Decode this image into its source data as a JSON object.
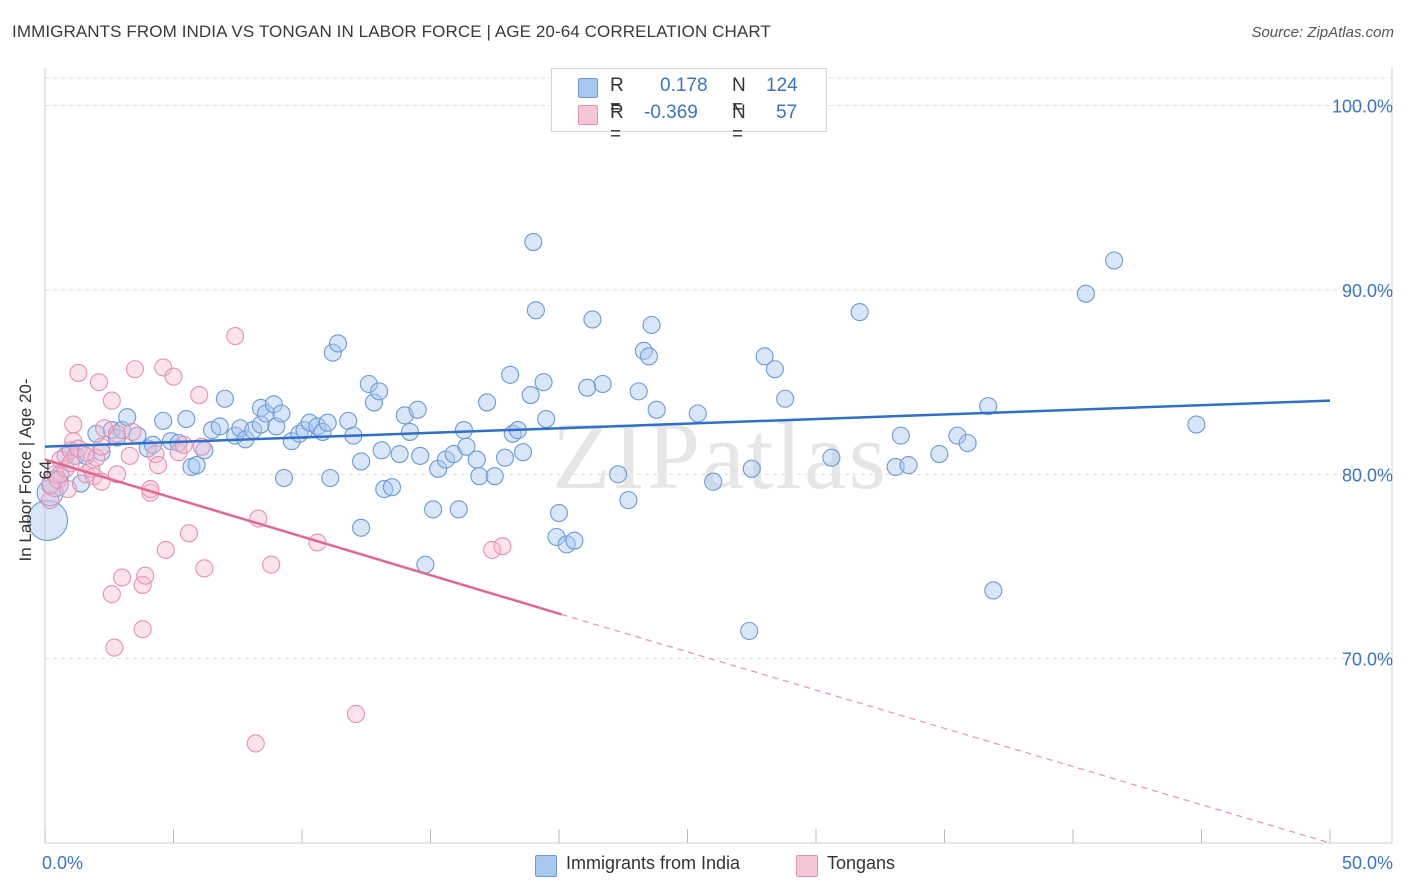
{
  "title": "IMMIGRANTS FROM INDIA VS TONGAN IN LABOR FORCE | AGE 20-64 CORRELATION CHART",
  "source": "Source: ZipAtlas.com",
  "watermark": "ZIPatlas",
  "legend": {
    "rows": [
      {
        "r_label": "R =",
        "r_value": "0.178",
        "n_label": "N =",
        "n_value": "124",
        "color": "#a8c8f0"
      },
      {
        "r_label": "R =",
        "r_value": "-0.369",
        "n_label": "N =",
        "n_value": "57",
        "color": "#f5b8cc"
      }
    ]
  },
  "bottom_legend": {
    "series1": "Immigrants from India",
    "series2": "Tongans"
  },
  "colors": {
    "blue": "#3b74c4",
    "blue_fill": "#a8c8f0",
    "pink": "#e06890",
    "pink_fill": "#f5b8cc"
  },
  "chart_data": {
    "type": "scatter",
    "title": "IMMIGRANTS FROM INDIA VS TONGAN IN LABOR FORCE | AGE 20-64 CORRELATION CHART",
    "xlabel": "",
    "ylabel": "In Labor Force | Age 20-64",
    "xlim": [
      0,
      50
    ],
    "ylim": [
      60,
      101.5
    ],
    "x_tick_labels": [
      "0.0%",
      "50.0%"
    ],
    "y_ticks": [
      70,
      80,
      90,
      100
    ],
    "y_tick_labels": [
      "70.0%",
      "80.0%",
      "90.0%",
      "100.0%"
    ],
    "series": [
      {
        "name": "Immigrants from India",
        "r": 0.178,
        "n": 124,
        "trend": {
          "x": [
            0,
            50
          ],
          "y": [
            81.5,
            84.0
          ]
        },
        "points": [
          [
            0.1,
            77.5
          ],
          [
            0.2,
            79
          ],
          [
            0.4,
            79.5
          ],
          [
            0.6,
            80
          ],
          [
            0.8,
            81
          ],
          [
            1,
            81.3
          ],
          [
            1.2,
            81
          ],
          [
            1.4,
            79.5
          ],
          [
            1.6,
            81
          ],
          [
            2,
            82.2
          ],
          [
            2.2,
            81.2
          ],
          [
            2.6,
            82.4
          ],
          [
            2.8,
            82
          ],
          [
            3,
            82.4
          ],
          [
            3.2,
            83.1
          ],
          [
            3.6,
            82.1
          ],
          [
            4,
            81.4
          ],
          [
            4.2,
            81.6
          ],
          [
            4.6,
            82.9
          ],
          [
            4.9,
            81.8
          ],
          [
            5.2,
            81.7
          ],
          [
            5.5,
            83
          ],
          [
            5.7,
            80.4
          ],
          [
            5.9,
            80.5
          ],
          [
            6.2,
            81.3
          ],
          [
            6.5,
            82.4
          ],
          [
            6.8,
            82.6
          ],
          [
            7,
            84.1
          ],
          [
            7.4,
            82.1
          ],
          [
            7.6,
            82.5
          ],
          [
            7.8,
            81.9
          ],
          [
            8.1,
            82.4
          ],
          [
            8.4,
            82.7
          ],
          [
            8.4,
            83.6
          ],
          [
            8.6,
            83.3
          ],
          [
            8.9,
            83.8
          ],
          [
            9,
            82.6
          ],
          [
            9.2,
            83.3
          ],
          [
            9.3,
            79.8
          ],
          [
            9.6,
            81.8
          ],
          [
            9.9,
            82.2
          ],
          [
            10.1,
            82.4
          ],
          [
            10.3,
            82.8
          ],
          [
            10.6,
            82.6
          ],
          [
            10.8,
            82.3
          ],
          [
            11,
            82.8
          ],
          [
            11.1,
            79.8
          ],
          [
            11.2,
            86.6
          ],
          [
            11.4,
            87.1
          ],
          [
            11.8,
            82.9
          ],
          [
            12,
            82.1
          ],
          [
            12.3,
            77.1
          ],
          [
            12.3,
            80.7
          ],
          [
            12.6,
            84.9
          ],
          [
            12.8,
            83.9
          ],
          [
            13,
            84.5
          ],
          [
            13.1,
            81.3
          ],
          [
            13.2,
            79.2
          ],
          [
            13.5,
            79.3
          ],
          [
            13.8,
            81.1
          ],
          [
            14,
            83.2
          ],
          [
            14.2,
            82.3
          ],
          [
            14.5,
            83.5
          ],
          [
            14.6,
            81
          ],
          [
            14.8,
            75.1
          ],
          [
            15.1,
            78.1
          ],
          [
            15.3,
            80.3
          ],
          [
            15.6,
            80.8
          ],
          [
            15.9,
            81.1
          ],
          [
            16.1,
            78.1
          ],
          [
            16.3,
            82.4
          ],
          [
            16.4,
            81.5
          ],
          [
            16.8,
            80.8
          ],
          [
            16.9,
            79.9
          ],
          [
            17.2,
            83.9
          ],
          [
            17.5,
            79.9
          ],
          [
            17.9,
            80.9
          ],
          [
            18.1,
            85.4
          ],
          [
            18.2,
            82.2
          ],
          [
            18.4,
            82.4
          ],
          [
            18.6,
            81.2
          ],
          [
            18.9,
            84.3
          ],
          [
            19,
            92.6
          ],
          [
            19.1,
            88.9
          ],
          [
            19.4,
            85.0
          ],
          [
            19.5,
            83.0
          ],
          [
            19.9,
            76.6
          ],
          [
            20.0,
            77.9
          ],
          [
            20.3,
            76.2
          ],
          [
            20.6,
            76.4
          ],
          [
            21.1,
            84.7
          ],
          [
            21.3,
            88.4
          ],
          [
            21.7,
            84.9
          ],
          [
            22.3,
            80.0
          ],
          [
            22.7,
            78.6
          ],
          [
            23.1,
            84.5
          ],
          [
            23.3,
            86.7
          ],
          [
            23.5,
            86.4
          ],
          [
            23.6,
            88.1
          ],
          [
            23.8,
            83.5
          ],
          [
            25.4,
            83.3
          ],
          [
            26.0,
            79.6
          ],
          [
            27.4,
            71.5
          ],
          [
            27.5,
            80.3
          ],
          [
            28.0,
            86.4
          ],
          [
            28.4,
            85.7
          ],
          [
            28.8,
            84.1
          ],
          [
            30.6,
            80.9
          ],
          [
            31.7,
            88.8
          ],
          [
            33.1,
            80.4
          ],
          [
            33.3,
            82.1
          ],
          [
            33.6,
            80.5
          ],
          [
            34.8,
            81.1
          ],
          [
            35.5,
            82.1
          ],
          [
            35.9,
            81.7
          ],
          [
            36.7,
            83.7
          ],
          [
            36.9,
            73.7
          ],
          [
            40.5,
            89.8
          ],
          [
            41.6,
            91.6
          ],
          [
            44.8,
            82.7
          ]
        ]
      },
      {
        "name": "Tongans",
        "r": -0.369,
        "n": 57,
        "trend": {
          "x": [
            0,
            20.1
          ],
          "y": [
            80.8,
            72.4
          ]
        },
        "trend_dashed": {
          "x": [
            20.1,
            50
          ],
          "y": [
            72.4,
            60
          ]
        },
        "points": [
          [
            0.2,
            78.6
          ],
          [
            0.2,
            79.4
          ],
          [
            0.4,
            80.0
          ],
          [
            0.5,
            79.7
          ],
          [
            0.6,
            80.8
          ],
          [
            0.8,
            80.3
          ],
          [
            0.9,
            79.2
          ],
          [
            1.0,
            81.3
          ],
          [
            1.0,
            80.6
          ],
          [
            1.1,
            81.8
          ],
          [
            1.1,
            82.7
          ],
          [
            1.3,
            85.5
          ],
          [
            1.3,
            81.4
          ],
          [
            1.6,
            81.2
          ],
          [
            1.6,
            80.0
          ],
          [
            1.8,
            80.3
          ],
          [
            1.9,
            79.9
          ],
          [
            2.0,
            80.9
          ],
          [
            2.1,
            85.0
          ],
          [
            2.2,
            81.5
          ],
          [
            2.2,
            79.6
          ],
          [
            2.3,
            82.5
          ],
          [
            2.6,
            84.0
          ],
          [
            2.6,
            73.5
          ],
          [
            2.7,
            70.6
          ],
          [
            2.8,
            80.0
          ],
          [
            2.8,
            82.2
          ],
          [
            3.0,
            74.4
          ],
          [
            3.3,
            81.0
          ],
          [
            3.4,
            82.3
          ],
          [
            3.5,
            85.7
          ],
          [
            3.8,
            71.6
          ],
          [
            3.8,
            74.0
          ],
          [
            3.9,
            74.5
          ],
          [
            4.1,
            79.0
          ],
          [
            4.1,
            79.2
          ],
          [
            4.3,
            81.1
          ],
          [
            4.4,
            80.5
          ],
          [
            4.6,
            85.8
          ],
          [
            4.7,
            75.9
          ],
          [
            5.0,
            85.3
          ],
          [
            5.2,
            81.2
          ],
          [
            5.4,
            81.6
          ],
          [
            5.6,
            76.8
          ],
          [
            6.0,
            84.3
          ],
          [
            6.1,
            81.5
          ],
          [
            6.2,
            74.9
          ],
          [
            7.4,
            87.5
          ],
          [
            8.2,
            65.4
          ],
          [
            8.3,
            77.6
          ],
          [
            8.8,
            75.1
          ],
          [
            10.6,
            76.3
          ],
          [
            12.1,
            67.0
          ],
          [
            17.4,
            75.9
          ],
          [
            17.8,
            76.1
          ]
        ]
      }
    ]
  }
}
